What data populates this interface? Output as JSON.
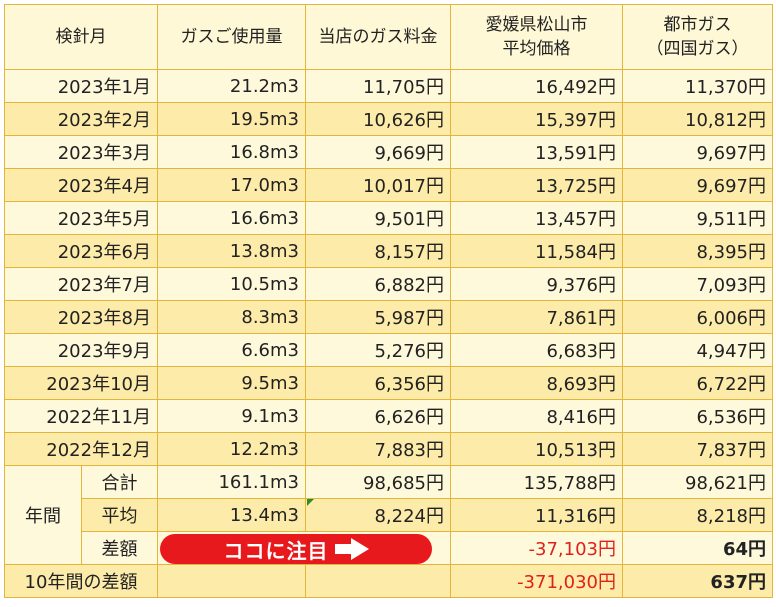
{
  "header": {
    "month": "検針月",
    "usage": "ガスご使用量",
    "our_fee": "当店のガス料金",
    "avg_line1": "愛媛県松山市",
    "avg_line2": "平均価格",
    "city_line1": "都市ガス",
    "city_line2": "（四国ガス）"
  },
  "rows": [
    {
      "month": "2023年1月",
      "usage": "21.2m3",
      "our_fee": "11,705円",
      "avg": "16,492円",
      "city": "11,370円"
    },
    {
      "month": "2023年2月",
      "usage": "19.5m3",
      "our_fee": "10,626円",
      "avg": "15,397円",
      "city": "10,812円"
    },
    {
      "month": "2023年3月",
      "usage": "16.8m3",
      "our_fee": "9,669円",
      "avg": "13,591円",
      "city": "9,697円"
    },
    {
      "month": "2023年4月",
      "usage": "17.0m3",
      "our_fee": "10,017円",
      "avg": "13,725円",
      "city": "9,697円"
    },
    {
      "month": "2023年5月",
      "usage": "16.6m3",
      "our_fee": "9,501円",
      "avg": "13,457円",
      "city": "9,511円"
    },
    {
      "month": "2023年6月",
      "usage": "13.8m3",
      "our_fee": "8,157円",
      "avg": "11,584円",
      "city": "8,395円"
    },
    {
      "month": "2023年7月",
      "usage": "10.5m3",
      "our_fee": "6,882円",
      "avg": "9,376円",
      "city": "7,093円"
    },
    {
      "month": "2023年8月",
      "usage": "8.3m3",
      "our_fee": "5,987円",
      "avg": "7,861円",
      "city": "6,006円"
    },
    {
      "month": "2023年9月",
      "usage": "6.6m3",
      "our_fee": "5,276円",
      "avg": "6,683円",
      "city": "4,947円"
    },
    {
      "month": "2023年10月",
      "usage": "9.5m3",
      "our_fee": "6,356円",
      "avg": "8,693円",
      "city": "6,722円"
    },
    {
      "month": "2022年11月",
      "usage": "9.1m3",
      "our_fee": "6,626円",
      "avg": "8,416円",
      "city": "6,536円"
    },
    {
      "month": "2022年12月",
      "usage": "12.2m3",
      "our_fee": "7,883円",
      "avg": "10,513円",
      "city": "7,837円"
    }
  ],
  "annual": {
    "label": "年間",
    "total": {
      "label": "合計",
      "usage": "161.1m3",
      "our_fee": "98,685円",
      "avg": "135,788円",
      "city": "98,621円"
    },
    "average": {
      "label": "平均",
      "usage": "13.4m3",
      "our_fee": "8,224円",
      "avg": "11,316円",
      "city": "8,218円"
    },
    "diff": {
      "label": "差額",
      "banner": "ココに注目",
      "avg": "-37,103円",
      "city": "64円"
    }
  },
  "ten_year": {
    "label": "10年間の差額",
    "avg": "-371,030円",
    "city": "637円"
  },
  "colors": {
    "border": "#e3b53a",
    "light_row": "#fff9dc",
    "dark_row": "#fdeba9",
    "banner": "#e8191c",
    "negative": "#e0201b"
  }
}
